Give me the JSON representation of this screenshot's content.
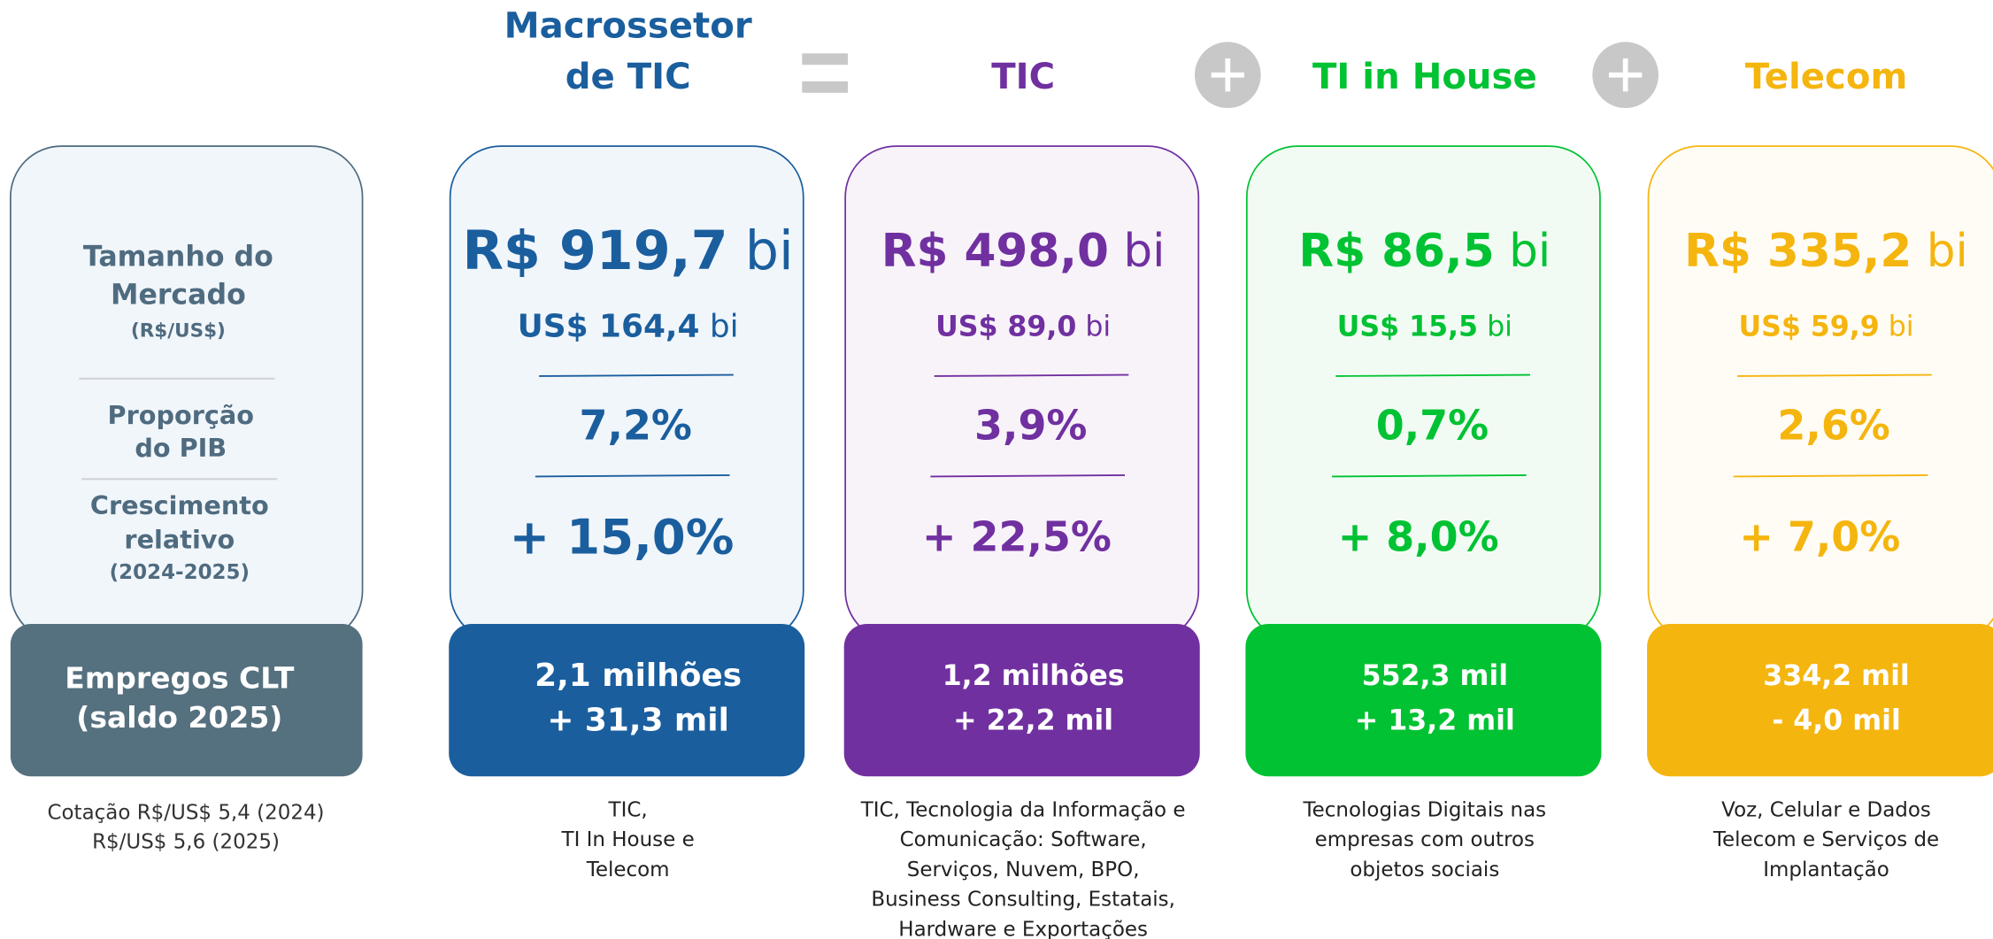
{
  "labels": {
    "market": [
      "Tamanho do",
      "Mercado"
    ],
    "market_unit": "(R$/US$)",
    "pib": [
      "Proporção",
      "do PIB"
    ],
    "growth": [
      "Crescimento",
      "relativo"
    ],
    "growth_period": "(2024-2025)",
    "jobs": [
      "Empregos CLT",
      "(saldo 2025)"
    ],
    "note": [
      "Cotação R$/US$ 5,4 (2024)",
      "R$/US$ 5,6 (2025)"
    ]
  },
  "columns": [
    {
      "name": [
        "Macrossetor",
        "de TIC"
      ],
      "brl": "R$ 919,7",
      "brl_unit": "bi",
      "usd": "US$ 164,4",
      "usd_unit": "bi",
      "pib": "7,2%",
      "growth": "+ 15,0%",
      "jobs": [
        "2,1 milhões",
        "+ 31,3 mil"
      ],
      "description": [
        "TIC,",
        "TI In House e",
        "Telecom"
      ]
    },
    {
      "name": [
        "TIC"
      ],
      "brl": "R$ 498,0",
      "brl_unit": "bi",
      "usd": "US$ 89,0",
      "usd_unit": "bi",
      "pib": "3,9%",
      "growth": "+ 22,5%",
      "jobs": [
        "1,2 milhões",
        "+ 22,2 mil"
      ],
      "description": [
        "TIC, Tecnologia da Informação e",
        "Comunicação: Software,",
        "Serviços, Nuvem, BPO,",
        "Business Consulting, Estatais,",
        "Hardware e Exportações"
      ]
    },
    {
      "name": [
        "TI in House"
      ],
      "brl": "R$ 86,5",
      "brl_unit": "bi",
      "usd": "US$ 15,5",
      "usd_unit": "bi",
      "pib": "0,7%",
      "growth": "+ 8,0%",
      "jobs": [
        "552,3 mil",
        "+ 13,2 mil"
      ],
      "description": [
        "Tecnologias Digitais nas",
        "empresas com outros",
        "objetos sociais"
      ]
    },
    {
      "name": [
        "Telecom"
      ],
      "brl": "R$ 335,2",
      "brl_unit": "bi",
      "usd": "US$ 59,9",
      "usd_unit": "bi",
      "pib": "2,6%",
      "growth": "+ 7,0%",
      "jobs": [
        "334,2 mil",
        "- 4,0 mil"
      ],
      "description": [
        "Voz, Celular e Dados",
        "Telecom e Serviços de",
        "Implantação"
      ]
    }
  ]
}
